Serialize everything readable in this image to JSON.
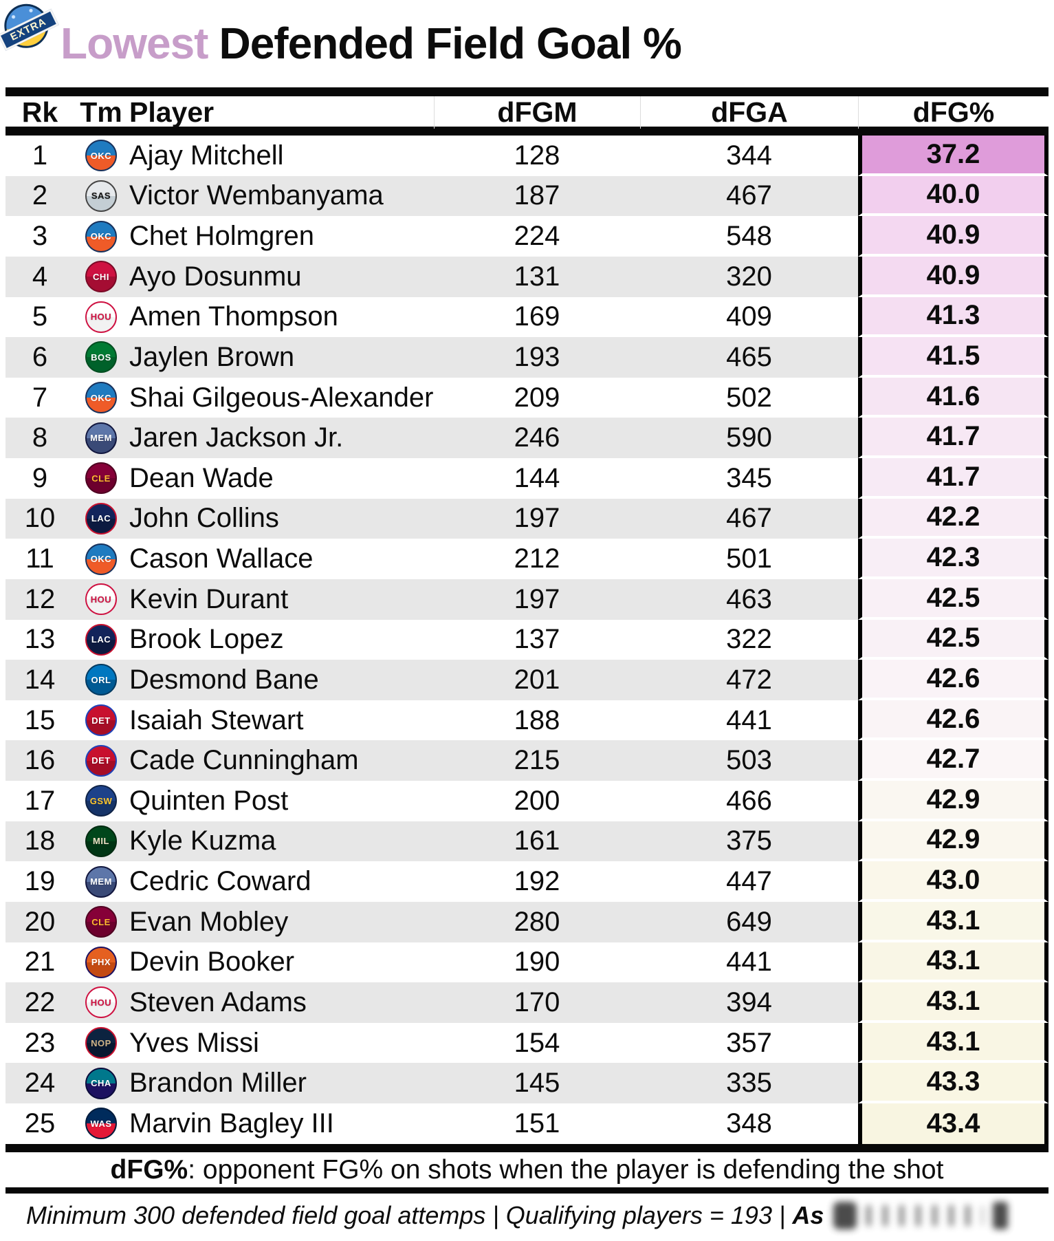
{
  "badge": {
    "label": "EXTRA"
  },
  "title": {
    "highlight": "Lowest",
    "rest": "Defended Field Goal %"
  },
  "footer": {
    "definition_term": "dFG%",
    "definition_rest": ": opponent FG% on shots when the player is defending the shot",
    "note_main": "Minimum 300 defended field goal attemps | Qualifying players = 193 |",
    "note_suffix": "As"
  },
  "colors": {
    "title_highlight": "#c79dc9",
    "row_alt": "#e7e7e7",
    "bar": "#080808",
    "pct_scale_top": "#df9cda",
    "pct_scale_bottom": "#f8f5e1"
  },
  "chart_data": {
    "type": "table",
    "title": "Lowest Defended Field Goal %",
    "columns": [
      "Rk",
      "Tm",
      "Player",
      "dFGM",
      "dFGA",
      "dFG%"
    ],
    "rows": [
      {
        "rk": "1",
        "player": "Ajay Mitchell",
        "dfgm": "128",
        "dfga": "344",
        "dfgp": "37.2",
        "pct_bg": "#df9cda",
        "team": {
          "abbr": "OKC",
          "name": "oklahoma-city-thunder",
          "bg1": "#1f7bc0",
          "bg2": "#ef5b28",
          "fg": "#ffffff",
          "border": "#17315c"
        }
      },
      {
        "rk": "2",
        "player": "Victor Wembanyama",
        "dfgm": "187",
        "dfga": "467",
        "dfgp": "40.0",
        "pct_bg": "#f2cfee",
        "team": {
          "abbr": "SAS",
          "name": "san-antonio-spurs",
          "bg1": "#e6e9ec",
          "bg2": "#c4ced4",
          "fg": "#111111",
          "border": "#444444"
        }
      },
      {
        "rk": "3",
        "player": "Chet Holmgren",
        "dfgm": "224",
        "dfga": "548",
        "dfgp": "40.9",
        "pct_bg": "#f4d8f1",
        "team": {
          "abbr": "OKC",
          "name": "oklahoma-city-thunder",
          "bg1": "#1f7bc0",
          "bg2": "#ef5b28",
          "fg": "#ffffff",
          "border": "#17315c"
        }
      },
      {
        "rk": "4",
        "player": "Ayo Dosunmu",
        "dfgm": "131",
        "dfga": "320",
        "dfgp": "40.9",
        "pct_bg": "#f4daf1",
        "team": {
          "abbr": "CHI",
          "name": "chicago-bulls",
          "bg1": "#ce1141",
          "bg2": "#a50d33",
          "fg": "#ffffff",
          "border": "#7a0a26"
        }
      },
      {
        "rk": "5",
        "player": "Amen Thompson",
        "dfgm": "169",
        "dfga": "409",
        "dfgp": "41.3",
        "pct_bg": "#f5def2",
        "team": {
          "abbr": "HOU",
          "name": "houston-rockets",
          "bg1": "#ffffff",
          "bg2": "#f2f2f2",
          "fg": "#ce1141",
          "border": "#ce1141"
        }
      },
      {
        "rk": "6",
        "player": "Jaylen Brown",
        "dfgm": "193",
        "dfga": "465",
        "dfgp": "41.5",
        "pct_bg": "#f6e2f3",
        "team": {
          "abbr": "BOS",
          "name": "boston-celtics",
          "bg1": "#007a33",
          "bg2": "#00612a",
          "fg": "#ffffff",
          "border": "#004d20"
        }
      },
      {
        "rk": "7",
        "player": "Shai Gilgeous-Alexander",
        "dfgm": "209",
        "dfga": "502",
        "dfgp": "41.6",
        "pct_bg": "#f6e5f3",
        "team": {
          "abbr": "OKC",
          "name": "oklahoma-city-thunder",
          "bg1": "#1f7bc0",
          "bg2": "#ef5b28",
          "fg": "#ffffff",
          "border": "#17315c"
        }
      },
      {
        "rk": "8",
        "player": "Jaren Jackson Jr.",
        "dfgm": "246",
        "dfga": "590",
        "dfgp": "41.7",
        "pct_bg": "#f7e8f4",
        "team": {
          "abbr": "MEM",
          "name": "memphis-grizzlies",
          "bg1": "#5d76a9",
          "bg2": "#3a4a77",
          "fg": "#ffffff",
          "border": "#12173f"
        }
      },
      {
        "rk": "9",
        "player": "Dean Wade",
        "dfgm": "144",
        "dfga": "345",
        "dfgp": "41.7",
        "pct_bg": "#f7eaf5",
        "team": {
          "abbr": "CLE",
          "name": "cleveland-cavaliers",
          "bg1": "#860038",
          "bg2": "#6d002d",
          "fg": "#fdbb30",
          "border": "#4f0021"
        }
      },
      {
        "rk": "10",
        "player": "John Collins",
        "dfgm": "197",
        "dfga": "467",
        "dfgp": "42.2",
        "pct_bg": "#f8ecf5",
        "team": {
          "abbr": "LAC",
          "name": "la-clippers",
          "bg1": "#12245b",
          "bg2": "#0c1a40",
          "fg": "#ffffff",
          "border": "#c8102e"
        }
      },
      {
        "rk": "11",
        "player": "Cason Wallace",
        "dfgm": "212",
        "dfga": "501",
        "dfgp": "42.3",
        "pct_bg": "#f8eef6",
        "team": {
          "abbr": "OKC",
          "name": "oklahoma-city-thunder",
          "bg1": "#1f7bc0",
          "bg2": "#ef5b28",
          "fg": "#ffffff",
          "border": "#17315c"
        }
      },
      {
        "rk": "12",
        "player": "Kevin Durant",
        "dfgm": "197",
        "dfga": "463",
        "dfgp": "42.5",
        "pct_bg": "#f9f0f6",
        "team": {
          "abbr": "HOU",
          "name": "houston-rockets",
          "bg1": "#ffffff",
          "bg2": "#f2f2f2",
          "fg": "#ce1141",
          "border": "#ce1141"
        }
      },
      {
        "rk": "13",
        "player": "Brook Lopez",
        "dfgm": "137",
        "dfga": "322",
        "dfgp": "42.5",
        "pct_bg": "#f9f1f6",
        "team": {
          "abbr": "LAC",
          "name": "la-clippers",
          "bg1": "#12245b",
          "bg2": "#0c1a40",
          "fg": "#ffffff",
          "border": "#c8102e"
        }
      },
      {
        "rk": "14",
        "player": "Desmond Bane",
        "dfgm": "201",
        "dfga": "472",
        "dfgp": "42.6",
        "pct_bg": "#faf3f7",
        "team": {
          "abbr": "ORL",
          "name": "orlando-magic",
          "bg1": "#0077c0",
          "bg2": "#005a94",
          "fg": "#ffffff",
          "border": "#003a61"
        }
      },
      {
        "rk": "15",
        "player": "Isaiah Stewart",
        "dfgm": "188",
        "dfga": "441",
        "dfgp": "42.6",
        "pct_bg": "#faf4f6",
        "team": {
          "abbr": "DET",
          "name": "detroit-pistons",
          "bg1": "#c8102e",
          "bg2": "#a60d26",
          "fg": "#ffffff",
          "border": "#1d42ba"
        }
      },
      {
        "rk": "16",
        "player": "Cade Cunningham",
        "dfgm": "215",
        "dfga": "503",
        "dfgp": "42.7",
        "pct_bg": "#fbf6f7",
        "team": {
          "abbr": "DET",
          "name": "detroit-pistons",
          "bg1": "#c8102e",
          "bg2": "#a60d26",
          "fg": "#ffffff",
          "border": "#1d42ba"
        }
      },
      {
        "rk": "17",
        "player": "Quinten Post",
        "dfgm": "200",
        "dfga": "466",
        "dfgp": "42.9",
        "pct_bg": "#faf7f1",
        "team": {
          "abbr": "GSW",
          "name": "golden-state-warriors",
          "bg1": "#1d428a",
          "bg2": "#163468",
          "fg": "#ffc72c",
          "border": "#0f2347"
        }
      },
      {
        "rk": "18",
        "player": "Kyle Kuzma",
        "dfgm": "161",
        "dfga": "375",
        "dfgp": "42.9",
        "pct_bg": "#faf7ee",
        "team": {
          "abbr": "MIL",
          "name": "milwaukee-bucks",
          "bg1": "#00471b",
          "bg2": "#003514",
          "fg": "#eee1c6",
          "border": "#002a10"
        }
      },
      {
        "rk": "19",
        "player": "Cedric Coward",
        "dfgm": "192",
        "dfga": "447",
        "dfgp": "43.0",
        "pct_bg": "#faf7ea",
        "team": {
          "abbr": "MEM",
          "name": "memphis-grizzlies",
          "bg1": "#5d76a9",
          "bg2": "#3a4a77",
          "fg": "#ffffff",
          "border": "#12173f"
        }
      },
      {
        "rk": "20",
        "player": "Evan Mobley",
        "dfgm": "280",
        "dfga": "649",
        "dfgp": "43.1",
        "pct_bg": "#f9f7e8",
        "team": {
          "abbr": "CLE",
          "name": "cleveland-cavaliers",
          "bg1": "#860038",
          "bg2": "#6d002d",
          "fg": "#fdbb30",
          "border": "#4f0021"
        }
      },
      {
        "rk": "21",
        "player": "Devin Booker",
        "dfgm": "190",
        "dfga": "441",
        "dfgp": "43.1",
        "pct_bg": "#f9f6e6",
        "team": {
          "abbr": "PHX",
          "name": "phoenix-suns",
          "bg1": "#e56020",
          "bg2": "#c44a12",
          "fg": "#ffffff",
          "border": "#1d1160"
        }
      },
      {
        "rk": "22",
        "player": "Steven Adams",
        "dfgm": "170",
        "dfga": "394",
        "dfgp": "43.1",
        "pct_bg": "#f9f6e5",
        "team": {
          "abbr": "HOU",
          "name": "houston-rockets",
          "bg1": "#ffffff",
          "bg2": "#f2f2f2",
          "fg": "#ce1141",
          "border": "#ce1141"
        }
      },
      {
        "rk": "23",
        "player": "Yves Missi",
        "dfgm": "154",
        "dfga": "357",
        "dfgp": "43.1",
        "pct_bg": "#f9f6e4",
        "team": {
          "abbr": "NOP",
          "name": "new-orleans-pelicans",
          "bg1": "#0c2340",
          "bg2": "#081830",
          "fg": "#d0b387",
          "border": "#c8102e"
        }
      },
      {
        "rk": "24",
        "player": "Brandon Miller",
        "dfgm": "145",
        "dfga": "335",
        "dfgp": "43.3",
        "pct_bg": "#f9f6e3",
        "team": {
          "abbr": "CHA",
          "name": "charlotte-hornets",
          "bg1": "#00788c",
          "bg2": "#1d1160",
          "fg": "#ffffff",
          "border": "#0b0b3b"
        }
      },
      {
        "rk": "25",
        "player": "Marvin Bagley III",
        "dfgm": "151",
        "dfga": "348",
        "dfgp": "43.4",
        "pct_bg": "#f8f5e1",
        "team": {
          "abbr": "WAS",
          "name": "washington-wizards",
          "bg1": "#002b5c",
          "bg2": "#e31837",
          "fg": "#ffffff",
          "border": "#001c3d"
        }
      }
    ]
  }
}
